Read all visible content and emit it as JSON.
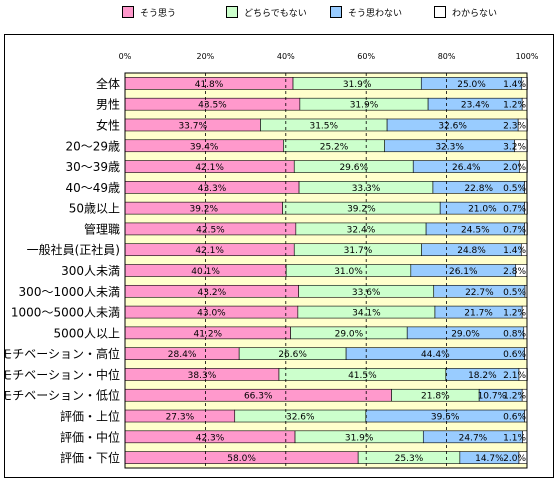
{
  "legend": [
    {
      "label": "そう思う",
      "color": "#ff99cc"
    },
    {
      "label": "どちらでもない",
      "color": "#ccffcc"
    },
    {
      "label": "そう思わない",
      "color": "#99ccff"
    },
    {
      "label": "わからない",
      "color": "#ffffff"
    }
  ],
  "chart_data": {
    "type": "bar",
    "orientation": "horizontal",
    "stacked": true,
    "grid": true,
    "xlim": [
      0,
      100
    ],
    "x_ticks": [
      "0%",
      "20%",
      "40%",
      "60%",
      "80%",
      "100%"
    ],
    "plot_background": "#ffffcc",
    "categories": [
      "全体",
      "男性",
      "女性",
      "20～29歳",
      "30～39歳",
      "40～49歳",
      "50歳以上",
      "管理職",
      "一般社員(正社員)",
      "300人未満",
      "300～1000人未満",
      "1000～5000人未満",
      "5000人以上",
      "モチベーション・高位",
      "モチベーション・中位",
      "モチベーション・低位",
      "評価・上位",
      "評価・中位",
      "評価・下位"
    ],
    "series": [
      {
        "name": "そう思う",
        "color": "#ff99cc",
        "values": [
          41.8,
          43.5,
          33.7,
          39.4,
          42.1,
          43.3,
          39.2,
          42.5,
          42.1,
          40.1,
          43.2,
          43.0,
          41.2,
          28.4,
          38.3,
          66.3,
          27.3,
          42.3,
          58.0
        ],
        "labels": [
          "41.8%",
          "43.5%",
          "33.7%",
          "39.4%",
          "42.1%",
          "43.3%",
          "39.2%",
          "42.5%",
          "42.1%",
          "40.1%",
          "43.2%",
          "43.0%",
          "41.2%",
          "28.4%",
          "38.3%",
          "66.3%",
          "27.3%",
          "42.3%",
          "58.0%"
        ]
      },
      {
        "name": "どちらでもない",
        "color": "#ccffcc",
        "values": [
          31.9,
          31.9,
          31.5,
          25.2,
          29.6,
          33.3,
          39.2,
          32.4,
          31.7,
          31.0,
          33.6,
          34.1,
          29.0,
          26.6,
          41.5,
          21.8,
          32.6,
          31.9,
          25.3
        ],
        "labels": [
          "31.9%",
          "31.9%",
          "31.5%",
          "25.2%",
          "29.6%",
          "33.3%",
          "39.2%",
          "32.4%",
          "31.7%",
          "31.0%",
          "33.6%",
          "34.1%",
          "29.0%",
          "26.6%",
          "41.5%",
          "21.8%",
          "32.6%",
          "31.9%",
          "25.3%"
        ]
      },
      {
        "name": "そう思わない",
        "color": "#99ccff",
        "values": [
          25.0,
          23.4,
          32.6,
          32.3,
          26.4,
          22.8,
          21.0,
          24.5,
          24.8,
          26.1,
          22.7,
          21.7,
          29.0,
          44.4,
          18.2,
          10.7,
          39.5,
          24.7,
          14.7
        ],
        "labels": [
          "25.0%",
          "23.4%",
          "32.6%",
          "32.3%",
          "26.4%",
          "22.8%",
          "21.0%",
          "24.5%",
          "24.8%",
          "26.1%",
          "22.7%",
          "21.7%",
          "29.0%",
          "44.4%",
          "18.2%",
          "10.7%",
          "39.5%",
          "24.7%",
          "14.7%"
        ]
      },
      {
        "name": "わからない",
        "color": "#ffffff",
        "values": [
          1.4,
          1.2,
          2.3,
          3.2,
          2.0,
          0.5,
          0.7,
          0.7,
          1.4,
          2.8,
          0.5,
          1.2,
          0.8,
          0.6,
          2.1,
          1.2,
          0.6,
          1.1,
          2.0
        ],
        "labels": [
          "1.4%",
          "1.2%",
          "2.3%",
          "3.2%",
          "2.0%",
          "0.5%",
          "0.7%",
          "0.7%",
          "1.4%",
          "2.8%",
          "0.5%",
          "1.2%",
          "0.8%",
          "0.6%",
          "2.1%",
          "1.2%",
          "0.6%",
          "1.1%",
          "2.0%"
        ]
      }
    ]
  }
}
